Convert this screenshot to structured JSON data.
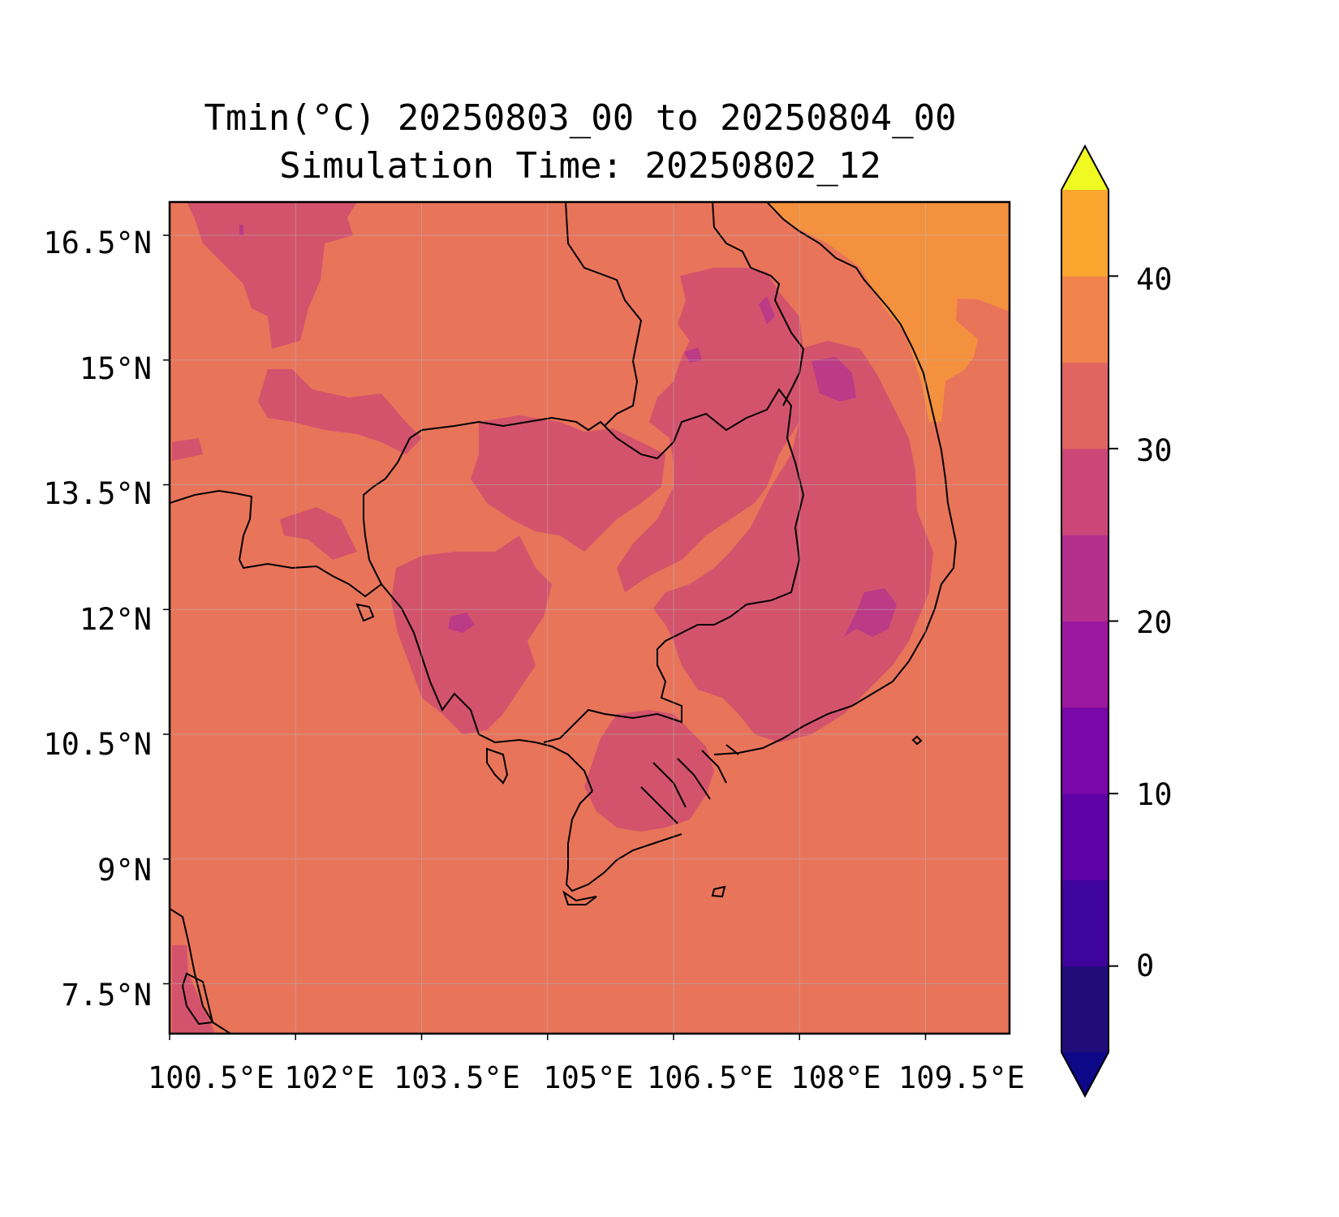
{
  "title": {
    "line1": "Tmin(°C) 20250803_00 to 20250804_00",
    "line2": "Simulation Time: 20250802_12"
  },
  "map": {
    "lon_range": [
      100.5,
      110.5
    ],
    "lat_range": [
      6.9,
      16.9
    ],
    "lat_ticks": [
      {
        "value": 16.5,
        "label": "16.5°N"
      },
      {
        "value": 15,
        "label": "15°N"
      },
      {
        "value": 13.5,
        "label": "13.5°N"
      },
      {
        "value": 12,
        "label": "12°N"
      },
      {
        "value": 10.5,
        "label": "10.5°N"
      },
      {
        "value": 9,
        "label": "9°N"
      },
      {
        "value": 7.5,
        "label": "7.5°N"
      }
    ],
    "lon_ticks": [
      {
        "value": 100.5,
        "label": "100.5°E"
      },
      {
        "value": 102,
        "label": "102°E"
      },
      {
        "value": 103.5,
        "label": "103.5°E"
      },
      {
        "value": 105,
        "label": "105°E"
      },
      {
        "value": 106.5,
        "label": "106.5°E"
      },
      {
        "value": 108,
        "label": "108°E"
      },
      {
        "value": 109.5,
        "label": "109.5°E"
      }
    ],
    "gridlines": true,
    "background_value_range": [
      25,
      30
    ],
    "colors": {
      "ocean_and_plains": "#e8745a",
      "cool_highlands": "#d3536c",
      "coolest_spots": "#bb3b87",
      "warm_northeast": "#f4913f",
      "frame": "#000000"
    }
  },
  "colorbar": {
    "min": -5,
    "max": 45,
    "extend": "both",
    "levels": [
      -5,
      0,
      5,
      10,
      15,
      20,
      25,
      30,
      35,
      40,
      45
    ],
    "colors": [
      "#200d7a",
      "#3e049c",
      "#5d02a5",
      "#7a08a8",
      "#9b179e",
      "#b42f8c",
      "#cc4778",
      "#e06561",
      "#f0844c",
      "#fba72f",
      "#f6e726"
    ],
    "under_color": "#0d0887",
    "over_color": "#f0f921",
    "ticks": [
      {
        "value": 0,
        "label": "0"
      },
      {
        "value": 10,
        "label": "10"
      },
      {
        "value": 20,
        "label": "20"
      },
      {
        "value": 30,
        "label": "30"
      },
      {
        "value": 40,
        "label": "40"
      }
    ]
  }
}
